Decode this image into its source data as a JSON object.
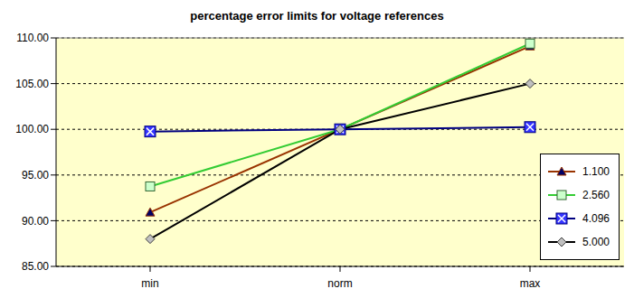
{
  "chart_data": {
    "type": "line",
    "title": "percentage error limits for voltage references",
    "categories": [
      "min",
      "norm",
      "max"
    ],
    "series": [
      {
        "name": "1.100",
        "color": "#993300",
        "marker": "triangle",
        "values": [
          90.91,
          100,
          109.09
        ]
      },
      {
        "name": "2.560",
        "color": "#33cc33",
        "marker": "square",
        "values": [
          93.75,
          100,
          109.38
        ]
      },
      {
        "name": "4.096",
        "color": "#000080",
        "marker": "square_x",
        "values": [
          99.76,
          100,
          100.24
        ]
      },
      {
        "name": "5.000",
        "color": "#000000",
        "marker": "diamond",
        "values": [
          88,
          100,
          105
        ]
      }
    ],
    "ylim": [
      85,
      110
    ],
    "yticks": [
      {
        "value": 85,
        "label": "85.00"
      },
      {
        "value": 90,
        "label": "90.00"
      },
      {
        "value": 95,
        "label": "95.00"
      },
      {
        "value": 100,
        "label": "100.00"
      },
      {
        "value": 105,
        "label": "105.00"
      },
      {
        "value": 110,
        "label": "110.00"
      }
    ],
    "grid": true,
    "legend": "bottom-right"
  }
}
